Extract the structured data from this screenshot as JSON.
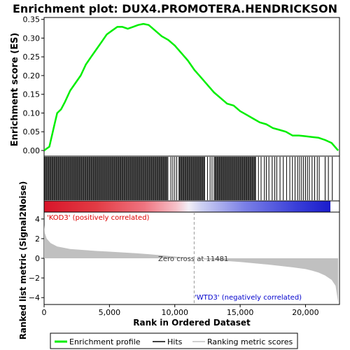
{
  "title": "Enrichment plot: DUX4.PROMOTERA.HENDRICKSON",
  "colors": {
    "enrichment_line": "#00ee00",
    "hit_line": "#000000",
    "ranking_fill": "#c0c0c0",
    "pos_label": "#dd0000",
    "neg_label": "#0000cc",
    "bar_red": "#e8262b",
    "bar_blue": "#2222dd"
  },
  "chart_data": [
    {
      "type": "line",
      "ylabel": "Enrichment score (ES)",
      "xlim": [
        0,
        22600
      ],
      "ylim": [
        -0.015,
        0.355
      ],
      "yticks": [
        0.0,
        0.05,
        0.1,
        0.15,
        0.2,
        0.25,
        0.3,
        0.35
      ],
      "ytick_labels": [
        "0.00",
        "0.05",
        "0.10",
        "0.15",
        "0.20",
        "0.25",
        "0.30",
        "0.35"
      ],
      "grid": false,
      "series": [
        {
          "name": "Enrichment profile",
          "x": [
            0,
            200,
            400,
            600,
            800,
            1000,
            1300,
            1600,
            2000,
            2400,
            2800,
            3200,
            3600,
            4000,
            4400,
            4800,
            5200,
            5600,
            6000,
            6400,
            6800,
            7200,
            7600,
            8000,
            8500,
            9000,
            9500,
            10000,
            10500,
            11000,
            11500,
            12000,
            12500,
            13000,
            13500,
            14000,
            14500,
            15000,
            15500,
            16000,
            16500,
            17000,
            17500,
            18000,
            18500,
            19000,
            19500,
            20000,
            20500,
            21000,
            21500,
            22000,
            22500
          ],
          "y": [
            0.0,
            0.005,
            0.01,
            0.04,
            0.07,
            0.1,
            0.11,
            0.13,
            0.16,
            0.18,
            0.2,
            0.23,
            0.25,
            0.27,
            0.29,
            0.31,
            0.32,
            0.33,
            0.33,
            0.325,
            0.33,
            0.335,
            0.338,
            0.335,
            0.32,
            0.305,
            0.295,
            0.28,
            0.26,
            0.24,
            0.215,
            0.195,
            0.175,
            0.155,
            0.14,
            0.125,
            0.12,
            0.105,
            0.095,
            0.085,
            0.075,
            0.07,
            0.06,
            0.055,
            0.05,
            0.04,
            0.04,
            0.038,
            0.036,
            0.034,
            0.028,
            0.02,
            0.0
          ]
        }
      ]
    },
    {
      "type": "scatter",
      "name": "Hits",
      "xlim": [
        0,
        22600
      ],
      "dense_hit_ranges": [
        [
          0,
          9500
        ],
        [
          10300,
          12300
        ],
        [
          13000,
          16200
        ]
      ],
      "hits": [
        9700,
        9850,
        10000,
        10150,
        12500,
        12700,
        12850,
        16400,
        16600,
        16850,
        17000,
        17200,
        17450,
        17650,
        17800,
        18050,
        18300,
        18550,
        18800,
        19000,
        19200,
        19400,
        19550,
        19700,
        19850,
        20000,
        20150,
        20300,
        20500,
        20700,
        20900,
        21050,
        21500,
        21750,
        22050
      ]
    },
    {
      "type": "area",
      "ylabel": "Ranked list metric (Signal2Noise)",
      "xlabel": "Rank in Ordered Dataset",
      "xlim": [
        0,
        22600
      ],
      "ylim": [
        -4.7,
        4.7
      ],
      "xticks": [
        0,
        5000,
        10000,
        15000,
        20000
      ],
      "xtick_labels": [
        "0",
        "5,000",
        "10,000",
        "15,000",
        "20,000"
      ],
      "yticks": [
        -4,
        -2,
        0,
        2,
        4
      ],
      "ytick_labels": [
        "−4",
        "−2",
        "0",
        "2",
        "4"
      ],
      "series": [
        {
          "name": "Ranking metric scores",
          "x": [
            0,
            50,
            200,
            500,
            1000,
            2000,
            3000,
            4000,
            5000,
            6000,
            7000,
            8000,
            9000,
            10000,
            11000,
            11481,
            12000,
            13000,
            14000,
            15000,
            16000,
            17000,
            18000,
            19000,
            20000,
            20500,
            21000,
            21500,
            22000,
            22300,
            22500
          ],
          "y": [
            3.4,
            2.6,
            2.0,
            1.55,
            1.2,
            0.95,
            0.85,
            0.75,
            0.68,
            0.6,
            0.52,
            0.42,
            0.3,
            0.18,
            0.05,
            0.0,
            -0.07,
            -0.18,
            -0.28,
            -0.38,
            -0.5,
            -0.62,
            -0.76,
            -0.92,
            -1.1,
            -1.25,
            -1.45,
            -1.75,
            -2.2,
            -2.8,
            -4.5
          ]
        }
      ],
      "zero_cross": 11481,
      "annotations": {
        "zero_cross": "Zero cross at 11481",
        "positive": "'KOD3' (positively correlated)",
        "negative": "'WTD3' (negatively correlated)"
      }
    }
  ],
  "legend": {
    "placement": "bottom",
    "items": [
      {
        "label": "Enrichment profile",
        "style": "enrichment"
      },
      {
        "label": "Hits",
        "style": "hits"
      },
      {
        "label": "Ranking metric scores",
        "style": "ranking"
      }
    ]
  }
}
